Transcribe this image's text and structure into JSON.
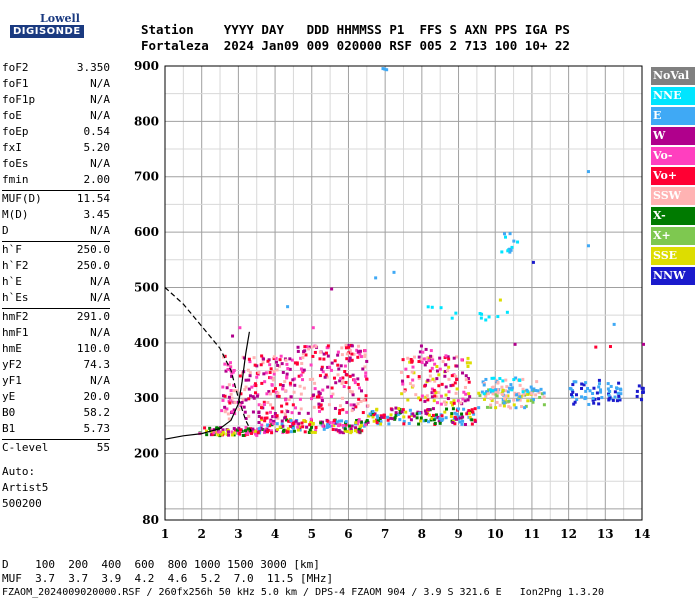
{
  "logo": {
    "line1": "Lowell",
    "line2": "DIGISONDE"
  },
  "header": {
    "line1": "Station    YYYY DAY   DDD HHMMSS P1  FFS S AXN PPS IGA PS",
    "line2": "Fortaleza  2024 Jan09 009 020000 RSF 005 2 713 100 10+ 22"
  },
  "params_group1": [
    {
      "name": "foF2",
      "value": "3.350"
    },
    {
      "name": "foF1",
      "value": "N/A"
    },
    {
      "name": "foF1p",
      "value": "N/A"
    },
    {
      "name": "foE",
      "value": "N/A"
    },
    {
      "name": "foEp",
      "value": "0.54"
    },
    {
      "name": "fxI",
      "value": "5.20"
    },
    {
      "name": "foEs",
      "value": "N/A"
    },
    {
      "name": "fmin",
      "value": "2.00"
    }
  ],
  "params_group2": [
    {
      "name": "MUF(D)",
      "value": "11.54"
    },
    {
      "name": "M(D)",
      "value": "3.45"
    },
    {
      "name": "D",
      "value": "N/A"
    }
  ],
  "params_group3": [
    {
      "name": "h`F",
      "value": "250.0"
    },
    {
      "name": "h`F2",
      "value": "250.0"
    },
    {
      "name": "h`E",
      "value": "N/A"
    },
    {
      "name": "h`Es",
      "value": "N/A"
    }
  ],
  "params_group4": [
    {
      "name": "hmF2",
      "value": "291.0"
    },
    {
      "name": "hmF1",
      "value": "N/A"
    },
    {
      "name": "hmE",
      "value": "110.0"
    },
    {
      "name": "yF2",
      "value": "74.3"
    },
    {
      "name": "yF1",
      "value": "N/A"
    },
    {
      "name": "yE",
      "value": "20.0"
    },
    {
      "name": "B0",
      "value": "58.2"
    },
    {
      "name": "B1",
      "value": "5.73"
    }
  ],
  "params_group5": [
    {
      "name": "C-level",
      "value": "55"
    }
  ],
  "auto": {
    "line1": "Auto:",
    "line2": "Artist5",
    "line3": "500200"
  },
  "legend": [
    {
      "label": "NoVal",
      "color": "#808080"
    },
    {
      "label": "NNE",
      "color": "#00e5ff"
    },
    {
      "label": "E",
      "color": "#3fa9f5"
    },
    {
      "label": "W",
      "color": "#b0008c"
    },
    {
      "label": "Vo-",
      "color": "#ff3fbf"
    },
    {
      "label": "Vo+",
      "color": "#ff0033"
    },
    {
      "label": "SSW",
      "color": "#ffb3b3"
    },
    {
      "label": "X-",
      "color": "#007a00"
    },
    {
      "label": "X+",
      "color": "#7ec850"
    },
    {
      "label": "SSE",
      "color": "#dddd00"
    },
    {
      "label": "NNW",
      "color": "#1a1acc"
    }
  ],
  "bottom": {
    "line1": "D    100  200  400  600  800 1000 1500 3000 [km]",
    "line2": "MUF  3.7  3.7  3.9  4.2  4.6  5.2  7.0  11.5 [MHz]",
    "line3": "FZAOM_2024009020000.RSF / 260fx256h 50 kHz 5.0 km / DPS-4 FZAOM 904 / 3.9 S 321.6 E   Ion2Png 1.3.20"
  },
  "chart_data": {
    "type": "scatter",
    "xlim": [
      1,
      14
    ],
    "ylim": [
      80,
      900
    ],
    "x_ticks": [
      "1",
      "2",
      "3",
      "4",
      "5",
      "6",
      "7",
      "8",
      "9",
      "10",
      "11",
      "12",
      "13",
      "14"
    ],
    "y_ticks": [
      "80",
      "200",
      "300",
      "400",
      "500",
      "600",
      "700",
      "800",
      "900"
    ],
    "grid": true,
    "legend_position": "right",
    "traces": [
      {
        "kind": "profile",
        "style": "solid",
        "points": [
          [
            1.0,
            226
          ],
          [
            1.5,
            232
          ],
          [
            2.0,
            236
          ],
          [
            2.5,
            245
          ],
          [
            2.8,
            260
          ],
          [
            3.0,
            290
          ],
          [
            3.1,
            330
          ],
          [
            3.2,
            380
          ],
          [
            3.3,
            420
          ]
        ]
      },
      {
        "kind": "muf",
        "style": "dashed",
        "points": [
          [
            1.0,
            500
          ],
          [
            1.5,
            470
          ],
          [
            2.0,
            430
          ],
          [
            2.5,
            390
          ],
          [
            2.8,
            350
          ],
          [
            3.0,
            300
          ],
          [
            3.2,
            260
          ],
          [
            3.35,
            240
          ]
        ]
      }
    ],
    "clusters": [
      {
        "x": [
          1.9,
          3.5
        ],
        "y": [
          235,
          250
        ],
        "n": 90,
        "colors": [
          "#ff0033",
          "#b0008c",
          "#ff3fbf",
          "#007a00",
          "#dddd00"
        ]
      },
      {
        "x": [
          3.5,
          6.5
        ],
        "y": [
          240,
          265
        ],
        "n": 180,
        "colors": [
          "#ff0033",
          "#b0008c",
          "#3fa9f5",
          "#dddd00",
          "#007a00",
          "#ff3fbf"
        ]
      },
      {
        "x": [
          6.5,
          9.5
        ],
        "y": [
          255,
          285
        ],
        "n": 150,
        "colors": [
          "#3fa9f5",
          "#dddd00",
          "#ff0033",
          "#b0008c",
          "#007a00"
        ]
      },
      {
        "x": [
          9.5,
          11.3
        ],
        "y": [
          285,
          320
        ],
        "n": 80,
        "colors": [
          "#3fa9f5",
          "#dddd00",
          "#ffb3b3",
          "#7ec850"
        ]
      },
      {
        "x": [
          2.5,
          4.5
        ],
        "y": [
          265,
          380
        ],
        "n": 200,
        "colors": [
          "#b0008c",
          "#ff3fbf",
          "#ff0033",
          "#ffb3b3"
        ]
      },
      {
        "x": [
          4.5,
          6.5
        ],
        "y": [
          275,
          400
        ],
        "n": 180,
        "colors": [
          "#b0008c",
          "#ff3fbf",
          "#ffb3b3",
          "#ff0033"
        ]
      },
      {
        "x": [
          7.4,
          9.3
        ],
        "y": [
          290,
          380
        ],
        "n": 140,
        "colors": [
          "#ffb3b3",
          "#ff3fbf",
          "#b0008c",
          "#dddd00",
          "#ff0033"
        ]
      },
      {
        "x": [
          9.6,
          11.3
        ],
        "y": [
          305,
          340
        ],
        "n": 60,
        "colors": [
          "#3fa9f5",
          "#00e5ff",
          "#ffb3b3"
        ]
      },
      {
        "x": [
          12.0,
          12.9
        ],
        "y": [
          290,
          335
        ],
        "n": 40,
        "colors": [
          "#1a1acc",
          "#3fa9f5"
        ]
      },
      {
        "x": [
          13.0,
          13.4
        ],
        "y": [
          295,
          330
        ],
        "n": 25,
        "colors": [
          "#1a1acc",
          "#3fa9f5"
        ]
      },
      {
        "x": [
          13.8,
          14.0
        ],
        "y": [
          300,
          325
        ],
        "n": 10,
        "colors": [
          "#1a1acc"
        ]
      },
      {
        "x": [
          10.1,
          10.6
        ],
        "y": [
          560,
          600
        ],
        "n": 12,
        "colors": [
          "#00e5ff",
          "#3fa9f5"
        ]
      },
      {
        "x": [
          7.8,
          10.5
        ],
        "y": [
          440,
          470
        ],
        "n": 12,
        "colors": [
          "#00e5ff"
        ]
      },
      {
        "x": [
          7.9,
          8.3
        ],
        "y": [
          370,
          400
        ],
        "n": 10,
        "colors": [
          "#b0008c",
          "#ff3fbf"
        ]
      }
    ],
    "points": [
      {
        "x": 12.5,
        "y": 712,
        "color": "#3fa9f5"
      },
      {
        "x": 12.5,
        "y": 578,
        "color": "#3fa9f5"
      },
      {
        "x": 11.0,
        "y": 548,
        "color": "#1a1acc"
      },
      {
        "x": 10.1,
        "y": 480,
        "color": "#dddd00"
      },
      {
        "x": 6.9,
        "y": 898,
        "color": "#3fa9f5"
      },
      {
        "x": 6.95,
        "y": 897,
        "color": "#3fa9f5"
      },
      {
        "x": 7.0,
        "y": 896,
        "color": "#3fa9f5"
      },
      {
        "x": 3.0,
        "y": 430,
        "color": "#ff3fbf"
      },
      {
        "x": 5.0,
        "y": 430,
        "color": "#ff3fbf"
      },
      {
        "x": 2.8,
        "y": 415,
        "color": "#b0008c"
      },
      {
        "x": 13.2,
        "y": 436,
        "color": "#3fa9f5"
      },
      {
        "x": 14.0,
        "y": 400,
        "color": "#b0008c"
      },
      {
        "x": 4.3,
        "y": 468,
        "color": "#3fa9f5"
      },
      {
        "x": 6.7,
        "y": 520,
        "color": "#3fa9f5"
      },
      {
        "x": 7.2,
        "y": 530,
        "color": "#3fa9f5"
      },
      {
        "x": 12.7,
        "y": 395,
        "color": "#ff0033"
      },
      {
        "x": 13.1,
        "y": 396,
        "color": "#ff0033"
      },
      {
        "x": 10.5,
        "y": 400,
        "color": "#b0008c"
      },
      {
        "x": 5.5,
        "y": 500,
        "color": "#b0008c"
      }
    ]
  }
}
